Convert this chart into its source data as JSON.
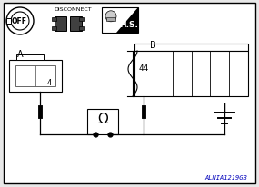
{
  "bg_color": "#e8e8e8",
  "border_color": "#000000",
  "line_color": "#000000",
  "label_A": "A",
  "label_B": "B",
  "label_4": "4",
  "label_44": "44",
  "label_disconnect": "DISCONNECT",
  "label_hs": "H.S.",
  "label_off": "OFF",
  "label_omega": "Ω",
  "watermark": "ALNIA1219GB",
  "figsize": [
    2.85,
    2.07
  ],
  "dpi": 100
}
